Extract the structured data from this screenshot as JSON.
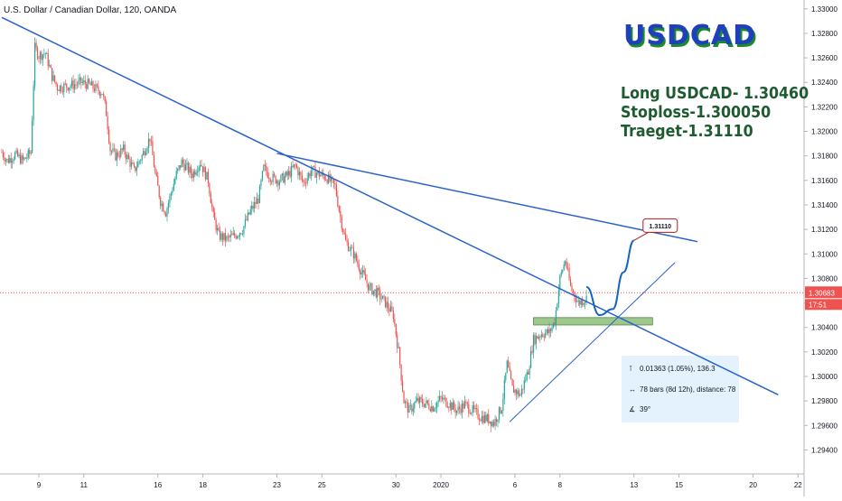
{
  "symbol_title": "U.S. Dollar / Canadian Dollar, 120, OANDA",
  "brand_text": "USDCAD",
  "trade_notes": [
    "Long USDCAD- 1.30460",
    "Stoploss-1.300050",
    "Traeget-1.31110"
  ],
  "target_label": "1.31110",
  "current_price_label": "1.30683",
  "countdown_label": "17:51",
  "measure": {
    "price_change": "0.01363 (1.05%), 136.3",
    "bars": "78 bars (8d 12h), distance: 78",
    "angle": "39°"
  },
  "colors": {
    "up": "#26a69a",
    "down": "#ef5350",
    "trendline": "#2962c9",
    "price_line": "#ef5350",
    "brand": "#1f3fbf",
    "notes": "#1e5b30",
    "support_zone": "#7fb36a"
  },
  "chart_data": {
    "type": "candlestick",
    "title": "U.S. Dollar / Canadian Dollar, 120, OANDA",
    "ylim": [
      1.293,
      1.3305
    ],
    "y_ticks": [
      "1.33000",
      "1.32800",
      "1.32600",
      "1.32400",
      "1.32200",
      "1.32000",
      "1.31800",
      "1.31600",
      "1.31400",
      "1.31200",
      "1.31000",
      "1.30800",
      "1.30600",
      "1.30400",
      "1.30200",
      "1.30000",
      "1.29800",
      "1.29600",
      "1.29400"
    ],
    "x_ticks": [
      "9",
      "11",
      "16",
      "18",
      "23",
      "25",
      "30",
      "2020",
      "6",
      "8",
      "13",
      "15",
      "20",
      "22"
    ],
    "x_tick_index": [
      28,
      62,
      118,
      152,
      208,
      242,
      298,
      332,
      388,
      422,
      478,
      512,
      568,
      602
    ],
    "close_path": [
      {
        "i": 0,
        "p": 1.3183
      },
      {
        "i": 4,
        "p": 1.3176
      },
      {
        "i": 10,
        "p": 1.3181
      },
      {
        "i": 16,
        "p": 1.3176
      },
      {
        "i": 22,
        "p": 1.3183
      },
      {
        "i": 25,
        "p": 1.3268
      },
      {
        "i": 28,
        "p": 1.3262
      },
      {
        "i": 33,
        "p": 1.3264
      },
      {
        "i": 38,
        "p": 1.3245
      },
      {
        "i": 42,
        "p": 1.3236
      },
      {
        "i": 48,
        "p": 1.3237
      },
      {
        "i": 54,
        "p": 1.3238
      },
      {
        "i": 60,
        "p": 1.324
      },
      {
        "i": 66,
        "p": 1.3238
      },
      {
        "i": 72,
        "p": 1.3234
      },
      {
        "i": 76,
        "p": 1.3232
      },
      {
        "i": 79,
        "p": 1.3215
      },
      {
        "i": 82,
        "p": 1.3185
      },
      {
        "i": 86,
        "p": 1.318
      },
      {
        "i": 92,
        "p": 1.3185
      },
      {
        "i": 100,
        "p": 1.3168
      },
      {
        "i": 106,
        "p": 1.318
      },
      {
        "i": 112,
        "p": 1.3195
      },
      {
        "i": 116,
        "p": 1.3165
      },
      {
        "i": 120,
        "p": 1.3143
      },
      {
        "i": 124,
        "p": 1.3134
      },
      {
        "i": 128,
        "p": 1.315
      },
      {
        "i": 132,
        "p": 1.3165
      },
      {
        "i": 136,
        "p": 1.3175
      },
      {
        "i": 140,
        "p": 1.317
      },
      {
        "i": 144,
        "p": 1.3165
      },
      {
        "i": 150,
        "p": 1.3175
      },
      {
        "i": 156,
        "p": 1.316
      },
      {
        "i": 160,
        "p": 1.313
      },
      {
        "i": 164,
        "p": 1.3115
      },
      {
        "i": 170,
        "p": 1.3112
      },
      {
        "i": 176,
        "p": 1.3115
      },
      {
        "i": 182,
        "p": 1.312
      },
      {
        "i": 188,
        "p": 1.3135
      },
      {
        "i": 194,
        "p": 1.3145
      },
      {
        "i": 198,
        "p": 1.317
      },
      {
        "i": 204,
        "p": 1.3162
      },
      {
        "i": 210,
        "p": 1.316
      },
      {
        "i": 216,
        "p": 1.3164
      },
      {
        "i": 222,
        "p": 1.3172
      },
      {
        "i": 228,
        "p": 1.3158
      },
      {
        "i": 234,
        "p": 1.3168
      },
      {
        "i": 240,
        "p": 1.3165
      },
      {
        "i": 246,
        "p": 1.3162
      },
      {
        "i": 252,
        "p": 1.3155
      },
      {
        "i": 256,
        "p": 1.313
      },
      {
        "i": 260,
        "p": 1.311
      },
      {
        "i": 266,
        "p": 1.31
      },
      {
        "i": 272,
        "p": 1.3085
      },
      {
        "i": 278,
        "p": 1.3072
      },
      {
        "i": 284,
        "p": 1.3068
      },
      {
        "i": 290,
        "p": 1.306
      },
      {
        "i": 296,
        "p": 1.305
      },
      {
        "i": 300,
        "p": 1.302
      },
      {
        "i": 304,
        "p": 1.298
      },
      {
        "i": 308,
        "p": 1.2972
      },
      {
        "i": 314,
        "p": 1.298
      },
      {
        "i": 320,
        "p": 1.2978
      },
      {
        "i": 326,
        "p": 1.2975
      },
      {
        "i": 332,
        "p": 1.2982
      },
      {
        "i": 338,
        "p": 1.2978
      },
      {
        "i": 344,
        "p": 1.2972
      },
      {
        "i": 350,
        "p": 1.2977
      },
      {
        "i": 356,
        "p": 1.2972
      },
      {
        "i": 362,
        "p": 1.2967
      },
      {
        "i": 368,
        "p": 1.2965
      },
      {
        "i": 372,
        "p": 1.2962
      },
      {
        "i": 378,
        "p": 1.2975
      },
      {
        "i": 382,
        "p": 1.301
      },
      {
        "i": 386,
        "p": 1.299
      },
      {
        "i": 392,
        "p": 1.2985
      },
      {
        "i": 398,
        "p": 1.3005
      },
      {
        "i": 402,
        "p": 1.303
      },
      {
        "i": 408,
        "p": 1.3035
      },
      {
        "i": 414,
        "p": 1.3036
      },
      {
        "i": 418,
        "p": 1.3045
      },
      {
        "i": 422,
        "p": 1.308
      },
      {
        "i": 426,
        "p": 1.3095
      },
      {
        "i": 430,
        "p": 1.3073
      },
      {
        "i": 436,
        "p": 1.306
      },
      {
        "i": 442,
        "p": 1.3064
      }
    ],
    "trendlines": [
      {
        "from": [
          0,
          1.3293
        ],
        "to": [
          587,
          1.2985
        ]
      },
      {
        "from": [
          208,
          1.3182
        ],
        "to": [
          526,
          1.311
        ]
      },
      {
        "from": [
          384,
          1.2963
        ],
        "to": [
          509,
          1.3093
        ]
      }
    ],
    "support_zone": {
      "from_index": 402,
      "to_index": 492,
      "low": 1.3042,
      "high": 1.3048
    },
    "current_price": 1.30683,
    "target": 1.3111,
    "projection": [
      [
        442,
        1.3073
      ],
      [
        452,
        1.305
      ],
      [
        462,
        1.3055
      ],
      [
        470,
        1.3085
      ],
      [
        478,
        1.3111
      ]
    ]
  }
}
